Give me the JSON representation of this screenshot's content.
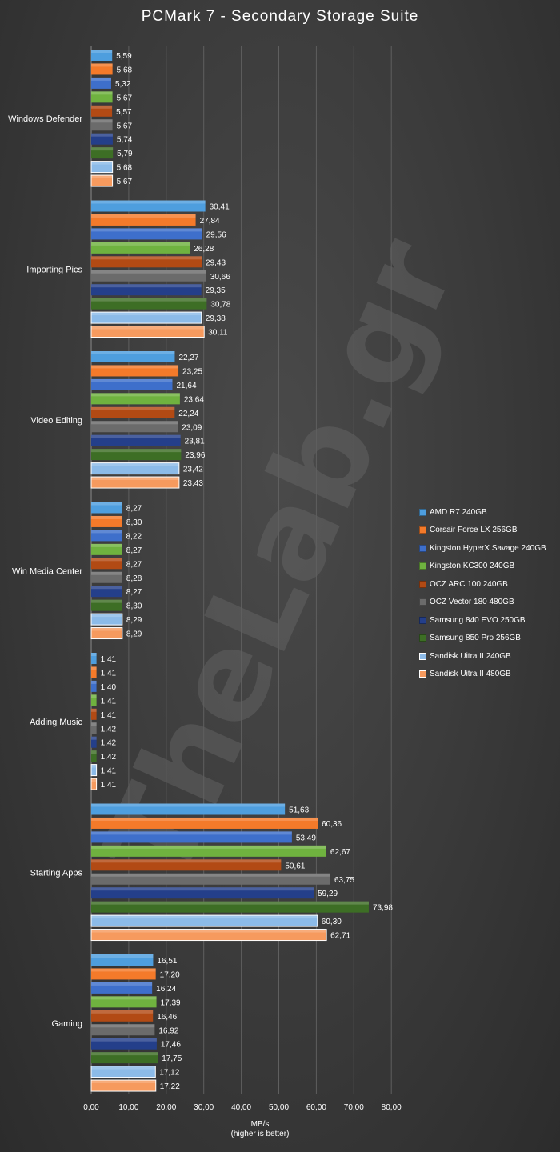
{
  "chart_data": {
    "type": "bar",
    "orientation": "horizontal",
    "title": "PCMark  7 - Secondary  Storage  Suite",
    "xlabel": "MB/s",
    "xlabel_note": "(higher is better)",
    "xlim": [
      0,
      80
    ],
    "x_ticks": [
      "0,00",
      "10,00",
      "20,00",
      "30,00",
      "40,00",
      "50,00",
      "60,00",
      "70,00",
      "80,00"
    ],
    "grid": "vertical",
    "legend_position": "right",
    "categories": [
      "Windows Defender",
      "Importing Pics",
      "Video Editing",
      "Win Media Center",
      "Adding Music",
      "Starting Apps",
      "Gaming"
    ],
    "series": [
      {
        "name": "AMD R7 240GB",
        "color": "#4e9ede",
        "labels": [
          "5,59",
          "30,41",
          "22,27",
          "8,27",
          "1,41",
          "51,63",
          "16,51"
        ],
        "values": [
          5.59,
          30.41,
          22.27,
          8.27,
          1.41,
          51.63,
          16.51
        ]
      },
      {
        "name": "Corsair Force LX 256GB",
        "color": "#f47a2a",
        "labels": [
          "5,68",
          "27,84",
          "23,25",
          "8,30",
          "1,41",
          "60,36",
          "17,20"
        ],
        "values": [
          5.68,
          27.84,
          23.25,
          8.3,
          1.41,
          60.36,
          17.2
        ]
      },
      {
        "name": "Kingston HyperX Savage 240GB",
        "color": "#3e6fcb",
        "labels": [
          "5,32",
          "29,56",
          "21,64",
          "8,22",
          "1,40",
          "53,49",
          "16,24"
        ],
        "values": [
          5.32,
          29.56,
          21.64,
          8.22,
          1.4,
          53.49,
          16.24
        ]
      },
      {
        "name": "Kingston KC300 240GB",
        "color": "#6fb23f",
        "labels": [
          "5,67",
          "26,28",
          "23,64",
          "8,27",
          "1,41",
          "62,67",
          "17,39"
        ],
        "values": [
          5.67,
          26.28,
          23.64,
          8.27,
          1.41,
          62.67,
          17.39
        ]
      },
      {
        "name": "OCZ ARC 100 240GB",
        "color": "#b24a14",
        "labels": [
          "5,57",
          "29,43",
          "22,24",
          "8,27",
          "1,41",
          "50,61",
          "16,46"
        ],
        "values": [
          5.57,
          29.43,
          22.24,
          8.27,
          1.41,
          50.61,
          16.46
        ]
      },
      {
        "name": "OCZ Vector 180 480GB",
        "color": "#6b6b6b",
        "labels": [
          "5,67",
          "30,66",
          "23,09",
          "8,28",
          "1,42",
          "63,75",
          "16,92"
        ],
        "values": [
          5.67,
          30.66,
          23.09,
          8.28,
          1.42,
          63.75,
          16.92
        ]
      },
      {
        "name": "Samsung 840 EVO 250GB",
        "color": "#243f8a",
        "labels": [
          "5,74",
          "29,35",
          "23,81",
          "8,27",
          "1,42",
          "59,29",
          "17,46"
        ],
        "values": [
          5.74,
          29.35,
          23.81,
          8.27,
          1.42,
          59.29,
          17.46
        ]
      },
      {
        "name": "Samsung 850 Pro 256GB",
        "color": "#3d6e25",
        "labels": [
          "5,79",
          "30,78",
          "23,96",
          "8,30",
          "1,42",
          "73,98",
          "17,75"
        ],
        "values": [
          5.79,
          30.78,
          23.96,
          8.3,
          1.42,
          73.98,
          17.75
        ]
      },
      {
        "name": "Sandisk Uitra II 240GB",
        "color": "#8cbbe8",
        "outline": "#ffffff",
        "labels": [
          "5,68",
          "29,38",
          "23,42",
          "8,29",
          "1,41",
          "60,30",
          "17,12"
        ],
        "values": [
          5.68,
          29.38,
          23.42,
          8.29,
          1.41,
          60.3,
          17.12
        ]
      },
      {
        "name": "Sandisk Uitra II 480GB",
        "color": "#f69a5e",
        "outline": "#ffffff",
        "labels": [
          "5,67",
          "30,11",
          "23,43",
          "8,29",
          "1,41",
          "62,71",
          "17,22"
        ],
        "values": [
          5.67,
          30.11,
          23.43,
          8.29,
          1.41,
          62.71,
          17.22
        ]
      }
    ]
  },
  "watermark": "TheLab.gr",
  "colors": {
    "gridline": "#5f5f5f",
    "text": "#ffffff"
  }
}
